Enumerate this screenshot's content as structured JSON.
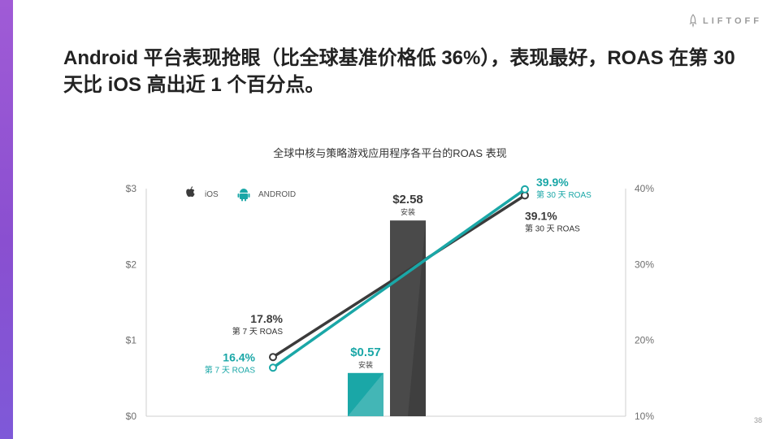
{
  "brand": {
    "name": "LIFTOFF"
  },
  "slide": {
    "title": "Android 平台表现抢眼（比全球基准价格低 36%），表现最好，ROAS 在第 30 天比 iOS 高出近 1 个百分点。",
    "page_number": "38"
  },
  "colors": {
    "accent_purple": "#9a55d6",
    "ios": "#3b3b3b",
    "android": "#1aa7a7",
    "grid_axis": "#cfcfcf",
    "text_gray": "#6f6f6f"
  },
  "chart_data": {
    "type": "bar+line",
    "title": "全球中核与策略游戏应用程序各平台的ROAS 表现",
    "left_axis": {
      "ticks": [
        "$0",
        "$1",
        "$2",
        "$3"
      ],
      "range": [
        0,
        3
      ],
      "unit": "USD (install cost)"
    },
    "right_axis": {
      "ticks": [
        "10%",
        "20%",
        "30%",
        "40%"
      ],
      "range": [
        10,
        40
      ],
      "unit": "ROAS %"
    },
    "legend": [
      {
        "name": "iOS",
        "icon": "apple-icon",
        "color": "#3b3b3b"
      },
      {
        "name": "ANDROID",
        "icon": "android-icon",
        "color": "#1aa7a7"
      }
    ],
    "bars": [
      {
        "series": "ANDROID",
        "value": 0.57,
        "label": "$0.57",
        "sublabel": "安装",
        "color": "#1aa7a7"
      },
      {
        "series": "iOS",
        "value": 2.58,
        "label": "$2.58",
        "sublabel": "安装",
        "color": "#4a4a4a"
      }
    ],
    "lines": [
      {
        "series": "iOS",
        "color": "#3b3b3b",
        "points": [
          {
            "x": "第 7 天",
            "value": 17.8,
            "label": "17.8%",
            "sublabel": "第 7 天 ROAS"
          },
          {
            "x": "第 30 天",
            "value": 39.1,
            "label": "39.1%",
            "sublabel": "第 30 天 ROAS"
          }
        ]
      },
      {
        "series": "ANDROID",
        "color": "#1aa7a7",
        "points": [
          {
            "x": "第 7 天",
            "value": 16.4,
            "label": "16.4%",
            "sublabel": "第 7 天 ROAS"
          },
          {
            "x": "第 30 天",
            "value": 39.9,
            "label": "39.9%",
            "sublabel": "第 30 天 ROAS"
          }
        ]
      }
    ]
  }
}
